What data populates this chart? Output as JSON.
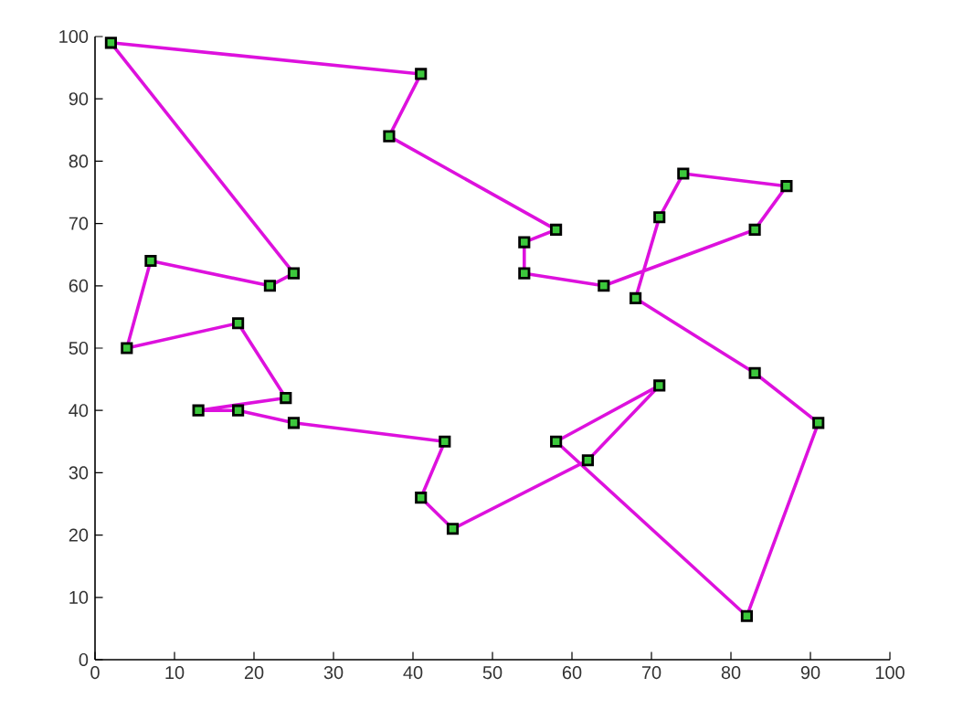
{
  "chart_data": {
    "type": "line",
    "x": [
      2,
      41,
      37,
      58,
      54,
      54,
      64,
      83,
      87,
      74,
      71,
      68,
      83,
      91,
      82,
      58,
      71,
      62,
      45,
      41,
      44,
      25,
      18,
      13,
      24,
      18,
      4,
      7,
      22,
      25
    ],
    "series": [
      {
        "color": "#dd11dd",
        "marker": "none",
        "line_style": "solid",
        "values": [
          99,
          94,
          84,
          69,
          67,
          62,
          60,
          69,
          76,
          78,
          71,
          58,
          46,
          38,
          7,
          35,
          44,
          32,
          21,
          26,
          35,
          38,
          40,
          40,
          42,
          54,
          50,
          64,
          60,
          62
        ]
      },
      {
        "color": "#dd11dd",
        "marker": "none",
        "line_style": "solid",
        "x": [
          25,
          2
        ],
        "values": [
          62,
          99
        ]
      },
      {
        "type": "scatter",
        "color": "#3cc83c",
        "marker": "square",
        "values": [
          99,
          94,
          84,
          69,
          67,
          62,
          60,
          69,
          76,
          78,
          71,
          58,
          46,
          38,
          7,
          35,
          44,
          32,
          21,
          26,
          35,
          38,
          40,
          40,
          42,
          54,
          50,
          64,
          60,
          62
        ]
      }
    ],
    "xlim": [
      0,
      100
    ],
    "ylim": [
      0,
      100
    ],
    "xticks": [
      0,
      10,
      20,
      30,
      40,
      50,
      60,
      70,
      80,
      90,
      100
    ],
    "yticks": [
      0,
      10,
      20,
      30,
      40,
      50,
      60,
      70,
      80,
      90,
      100
    ],
    "grid": false
  }
}
